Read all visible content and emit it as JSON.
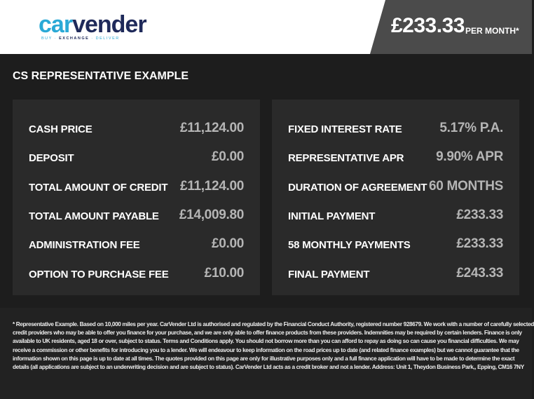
{
  "header": {
    "logo": {
      "text_a": "car",
      "text_b": "vender",
      "tagline_a": "BUY · ",
      "tagline_b": "EXCHANGE",
      "tagline_c": " · DELIVER"
    },
    "price": "£233.33",
    "price_suffix": "PER MONTH*"
  },
  "section_title": "CS REPRESENTATIVE EXAMPLE",
  "left": [
    {
      "label": "CASH PRICE",
      "value": "£11,124.00"
    },
    {
      "label": "DEPOSIT",
      "value": "£0.00"
    },
    {
      "label": "TOTAL AMOUNT OF CREDIT",
      "value": "£11,124.00"
    },
    {
      "label": "TOTAL AMOUNT PAYABLE",
      "value": "£14,009.80"
    },
    {
      "label": "ADMINISTRATION FEE",
      "value": "£0.00"
    },
    {
      "label": "OPTION TO PURCHASE FEE",
      "value": "£10.00"
    }
  ],
  "right": [
    {
      "label": "FIXED INTEREST RATE",
      "value": "5.17% P.A."
    },
    {
      "label": "REPRESENTATIVE APR",
      "value": "9.90% APR"
    },
    {
      "label": "DURATION OF AGREEMENT",
      "value": "60 MONTHS"
    },
    {
      "label": "INITIAL PAYMENT",
      "value": "£233.33"
    },
    {
      "label": "58 MONTHLY PAYMENTS",
      "value": "£233.33"
    },
    {
      "label": "FINAL PAYMENT",
      "value": "£243.33"
    }
  ],
  "disclaimer": [
    "* Representative Example. Based on 10,000 miles per year. CarVender Ltd  is authorised and regulated by the Financial Conduct Authority, registered number 928679. We work with a number of carefully selected",
    "credit providers who may be able to offer you finance for your purchase, and we are only able to offer finance products from these providers. Indemnities may be required by certain lenders. Finance is only",
    "available to UK residents, aged 18 or over, subject to status. Terms and Conditions apply. You should not borrow more than you can afford to repay as doing so can cause you financial difficulties. We may",
    "receive a commission or other benefits for introducing you to a lender. We will endeavour to keep information on the road prices up to date (and related finance examples) but we cannot guarantee that the",
    "information shown on this page is up to date at all times. The quotes provided on this page are only for illustrative purposes only and a full finance application will have to be made to determine the exact",
    "details (all applications are subject to an underwriting decision and are subject to status). CarVender Ltd  acts as a credit broker and not a lender. Address: Unit 1, Theydon Business Park,, Epping, CM16 7NY"
  ]
}
